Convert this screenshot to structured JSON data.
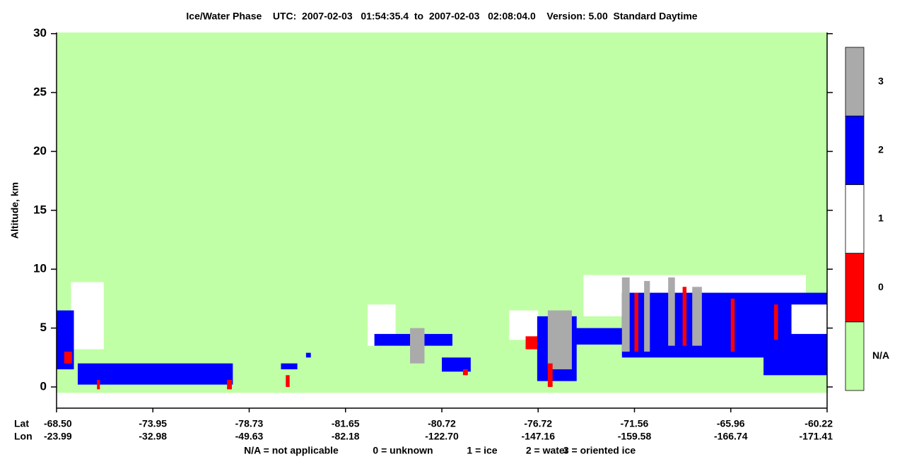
{
  "chart_data": {
    "type": "phase-profile",
    "title": "Ice/Water Phase    UTC:  2007-02-03   01:54:35.4  to  2007-02-03   02:08:04.0    Version: 5.00  Standard Daytime",
    "y_label": "Altitude, km",
    "ylim": [
      -1.8,
      30.1
    ],
    "yticks": [
      0,
      5,
      10,
      15,
      20,
      25,
      30
    ],
    "row_labels": [
      "Lat",
      "Lon"
    ],
    "categories": [
      [
        "-68.50",
        "-23.99"
      ],
      [
        "-73.95",
        "-32.98"
      ],
      [
        "-78.73",
        "-49.63"
      ],
      [
        "-81.65",
        "-82.18"
      ],
      [
        "-80.72",
        "-122.70"
      ],
      [
        "-76.72",
        "-147.16"
      ],
      [
        "-71.56",
        "-159.58"
      ],
      [
        "-65.96",
        "-166.74"
      ],
      [
        "-60.22",
        "-171.41"
      ]
    ],
    "background_color": "#c1ffa6",
    "colorbar": [
      {
        "label": "N/A",
        "color": "#c1ffa6"
      },
      {
        "label": "0",
        "color": "#ff0000"
      },
      {
        "label": "1",
        "color": "#ffffff"
      },
      {
        "label": "2",
        "color": "#0000ff"
      },
      {
        "label": "3",
        "color": "#aaaaaa"
      }
    ],
    "legend": [
      "N/A = not applicable",
      "0 = unknown",
      "1 = ice",
      "2 = water",
      "3 = oriented ice"
    ],
    "features": [
      {
        "phase": 2,
        "x": [
          0.15,
          0.49
        ],
        "alt": [
          3.2,
          8.9
        ]
      },
      {
        "phase": 3,
        "x": [
          0.22,
          1.83
        ],
        "alt": [
          0.2,
          2.0
        ]
      },
      {
        "phase": 3,
        "x": [
          0.0,
          0.18
        ],
        "alt": [
          1.5,
          6.5
        ]
      },
      {
        "phase": 1,
        "x": [
          0.08,
          0.16
        ],
        "alt": [
          2.0,
          3.0
        ]
      },
      {
        "phase": 1,
        "x": [
          0.42,
          0.45
        ],
        "alt": [
          -0.2,
          0.6
        ]
      },
      {
        "phase": 1,
        "x": [
          1.77,
          1.82
        ],
        "alt": [
          -0.2,
          0.6
        ]
      },
      {
        "phase": 3,
        "x": [
          2.33,
          2.5
        ],
        "alt": [
          1.5,
          2.0
        ]
      },
      {
        "phase": 1,
        "x": [
          2.38,
          2.42
        ],
        "alt": [
          0.0,
          1.0
        ]
      },
      {
        "phase": 3,
        "x": [
          2.59,
          2.64
        ],
        "alt": [
          2.5,
          2.9
        ]
      },
      {
        "phase": 2,
        "x": [
          3.23,
          3.52
        ],
        "alt": [
          3.5,
          7.0
        ]
      },
      {
        "phase": 3,
        "x": [
          3.3,
          4.11
        ],
        "alt": [
          3.5,
          4.5
        ]
      },
      {
        "phase": 4,
        "x": [
          3.67,
          3.82
        ],
        "alt": [
          2.0,
          5.0
        ]
      },
      {
        "phase": 3,
        "x": [
          4.0,
          4.3
        ],
        "alt": [
          1.3,
          2.5
        ]
      },
      {
        "phase": 1,
        "x": [
          4.22,
          4.27
        ],
        "alt": [
          1.0,
          1.5
        ]
      },
      {
        "phase": 2,
        "x": [
          4.7,
          5.0
        ],
        "alt": [
          4.0,
          6.5
        ]
      },
      {
        "phase": 1,
        "x": [
          4.87,
          5.0
        ],
        "alt": [
          3.2,
          4.3
        ]
      },
      {
        "phase": 3,
        "x": [
          4.99,
          5.4
        ],
        "alt": [
          0.5,
          6.0
        ]
      },
      {
        "phase": 4,
        "x": [
          5.1,
          5.35
        ],
        "alt": [
          1.5,
          6.5
        ]
      },
      {
        "phase": 1,
        "x": [
          5.1,
          5.15
        ],
        "alt": [
          0.0,
          2.0
        ]
      },
      {
        "phase": 3,
        "x": [
          5.36,
          5.9
        ],
        "alt": [
          3.6,
          5.0
        ]
      },
      {
        "phase": 2,
        "x": [
          5.47,
          7.78
        ],
        "alt": [
          6.0,
          9.5
        ]
      },
      {
        "phase": 3,
        "x": [
          5.87,
          8.0
        ],
        "alt": [
          2.5,
          8.0
        ]
      },
      {
        "phase": 4,
        "x": [
          5.87,
          5.95
        ],
        "alt": [
          3.0,
          9.3
        ]
      },
      {
        "phase": 4,
        "x": [
          6.1,
          6.16
        ],
        "alt": [
          3.0,
          9.0
        ]
      },
      {
        "phase": 4,
        "x": [
          6.35,
          6.42
        ],
        "alt": [
          3.5,
          9.3
        ]
      },
      {
        "phase": 4,
        "x": [
          6.6,
          6.7
        ],
        "alt": [
          3.5,
          8.5
        ]
      },
      {
        "phase": 1,
        "x": [
          6.0,
          6.04
        ],
        "alt": [
          3.0,
          8.0
        ]
      },
      {
        "phase": 1,
        "x": [
          6.5,
          6.54
        ],
        "alt": [
          3.5,
          8.5
        ]
      },
      {
        "phase": 1,
        "x": [
          7.0,
          7.04
        ],
        "alt": [
          3.0,
          7.5
        ]
      },
      {
        "phase": 1,
        "x": [
          7.45,
          7.49
        ],
        "alt": [
          4.0,
          7.0
        ]
      },
      {
        "phase": 3,
        "x": [
          7.34,
          8.0
        ],
        "alt": [
          1.0,
          3.0
        ]
      },
      {
        "phase": 2,
        "x": [
          7.63,
          8.0
        ],
        "alt": [
          4.5,
          7.0
        ]
      }
    ]
  }
}
